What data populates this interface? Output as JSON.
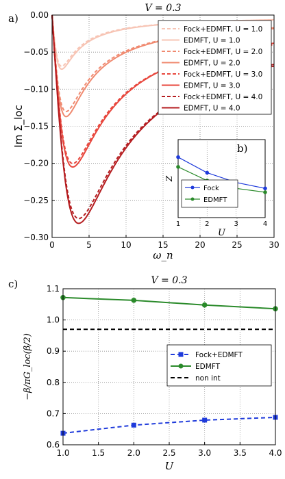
{
  "chart_data": [
    {
      "id": "a",
      "panel_label": "a)",
      "type": "line",
      "title": "V = 0.3",
      "xlabel": "ω_n",
      "ylabel": "Im Σ_loc",
      "xlim": [
        0,
        30
      ],
      "ylim": [
        -0.3,
        0.0
      ],
      "xticks": [
        "0",
        "5",
        "10",
        "15",
        "20",
        "25",
        "30"
      ],
      "yticks": [
        "0.00",
        "−0.05",
        "−0.10",
        "−0.15",
        "−0.20",
        "−0.25",
        "−0.30"
      ],
      "grid": true,
      "legend_position": "top-right",
      "series": [
        {
          "name": "Fock+EDMFT, U = 1.0",
          "color": "#f7c4b4",
          "style": "dashed",
          "U": 1.0,
          "min": {
            "x": 1.3,
            "y": -0.069
          }
        },
        {
          "name": "EDMFT, U = 1.0",
          "color": "#f7c4b4",
          "style": "solid",
          "U": 1.0,
          "min": {
            "x": 1.3,
            "y": -0.073
          }
        },
        {
          "name": "Fock+EDMFT, U = 2.0",
          "color": "#f08a70",
          "style": "dashed",
          "U": 2.0,
          "min": {
            "x": 1.9,
            "y": -0.13
          }
        },
        {
          "name": "EDMFT, U = 2.0",
          "color": "#f08a70",
          "style": "solid",
          "U": 2.0,
          "min": {
            "x": 1.9,
            "y": -0.137
          }
        },
        {
          "name": "Fock+EDMFT, U = 3.0",
          "color": "#e8473d",
          "style": "dashed",
          "U": 3.0,
          "min": {
            "x": 2.8,
            "y": -0.2
          }
        },
        {
          "name": "EDMFT, U = 3.0",
          "color": "#e8473d",
          "style": "solid",
          "U": 3.0,
          "min": {
            "x": 2.8,
            "y": -0.205
          }
        },
        {
          "name": "Fock+EDMFT, U = 4.0",
          "color": "#b51d20",
          "style": "dashed",
          "U": 4.0,
          "min": {
            "x": 3.6,
            "y": -0.274
          }
        },
        {
          "name": "EDMFT, U = 4.0",
          "color": "#b51d20",
          "style": "solid",
          "U": 4.0,
          "min": {
            "x": 3.6,
            "y": -0.281
          }
        }
      ]
    },
    {
      "id": "b",
      "panel_label": "b)",
      "type": "line",
      "xlabel": "U",
      "ylabel": "Z",
      "xlim": [
        1,
        4
      ],
      "ylim": [
        0.55,
        0.95
      ],
      "xticks": [
        "1",
        "2",
        "3",
        "4"
      ],
      "grid": true,
      "legend_position": "bottom-left",
      "x": [
        1,
        2,
        3,
        4
      ],
      "series": [
        {
          "name": "Fock",
          "color": "#1f3bdb",
          "marker": "circle",
          "values": [
            0.86,
            0.78,
            0.73,
            0.7
          ]
        },
        {
          "name": "EDMFT",
          "color": "#2a8a2a",
          "marker": "circle",
          "values": [
            0.81,
            0.74,
            0.7,
            0.68
          ]
        }
      ]
    },
    {
      "id": "c",
      "panel_label": "c)",
      "type": "line",
      "title": "V = 0.3",
      "xlabel": "U",
      "ylabel": "−β/πG_loc(β/2)",
      "xlim": [
        1.0,
        4.0
      ],
      "ylim": [
        0.6,
        1.1
      ],
      "xticks": [
        "1.0",
        "1.5",
        "2.0",
        "2.5",
        "3.0",
        "3.5",
        "4.0"
      ],
      "yticks": [
        "0.6",
        "0.7",
        "0.8",
        "0.9",
        "1.0",
        "1.1"
      ],
      "grid": true,
      "legend_position": "center-right",
      "x": [
        1,
        2,
        3,
        4
      ],
      "series": [
        {
          "name": "Fock+EDMFT",
          "color": "#1f3bdb",
          "style": "dashed",
          "marker": "square",
          "values": [
            0.637,
            0.663,
            0.679,
            0.688
          ]
        },
        {
          "name": "EDMFT",
          "color": "#2a8a2a",
          "style": "solid",
          "marker": "circle",
          "values": [
            1.072,
            1.063,
            1.048,
            1.036
          ]
        },
        {
          "name": "non int",
          "color": "#000000",
          "style": "dashed",
          "values": [
            0.97,
            0.97,
            0.97,
            0.97
          ]
        }
      ]
    }
  ]
}
